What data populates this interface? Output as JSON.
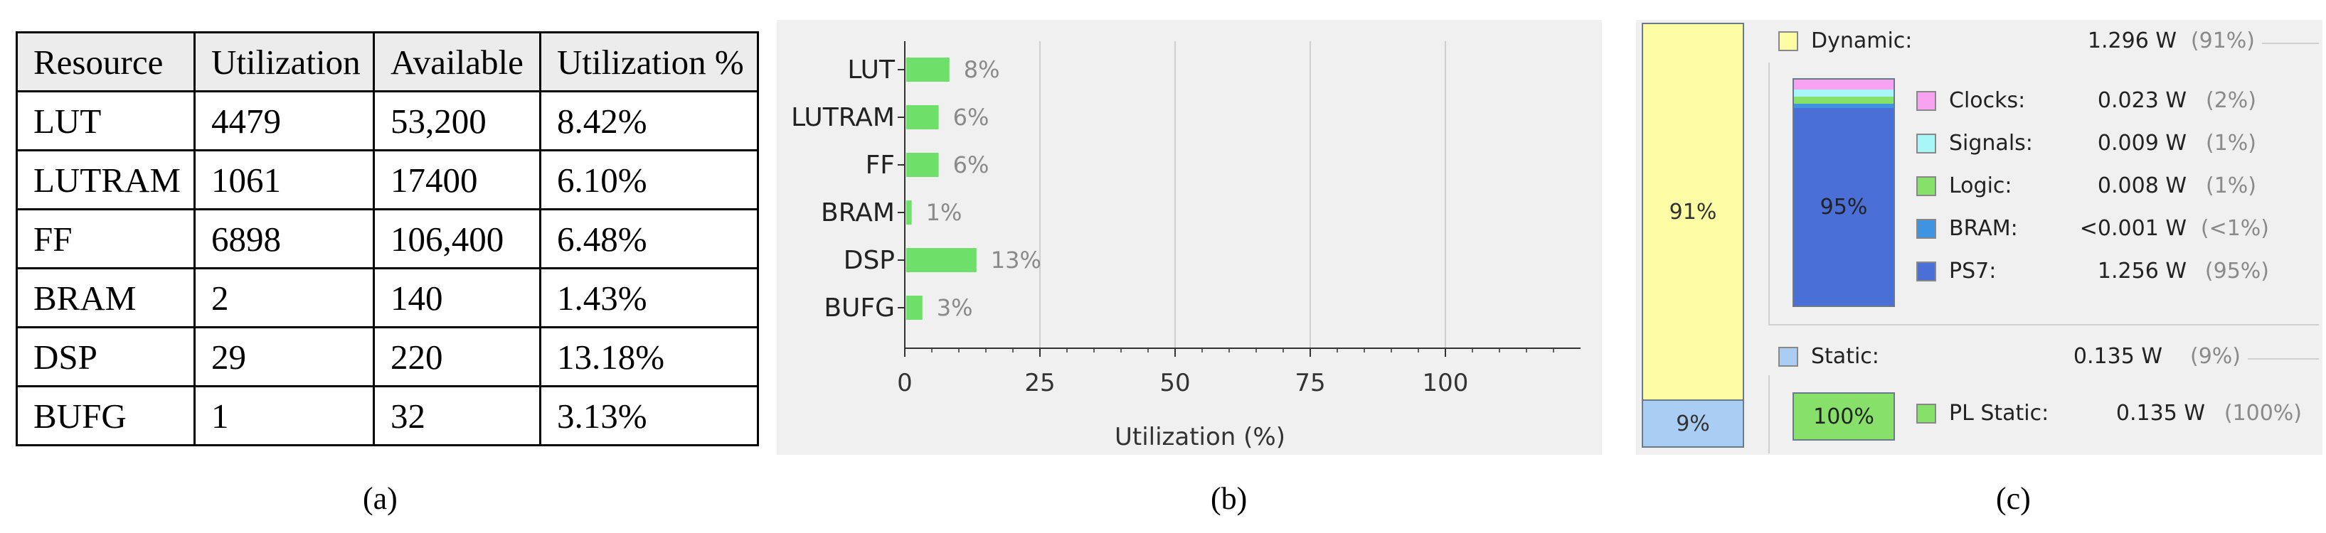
{
  "table": {
    "headers": [
      "Resource",
      "Utilization",
      "Available",
      "Utilization %"
    ],
    "rows": [
      [
        "LUT",
        "4479",
        "53,200",
        "8.42%"
      ],
      [
        "LUTRAM",
        "1061",
        "17400",
        "6.10%"
      ],
      [
        "FF",
        "6898",
        "106,400",
        "6.48%"
      ],
      [
        "BRAM",
        "2",
        "140",
        "1.43%"
      ],
      [
        "DSP",
        "29",
        "220",
        "13.18%"
      ],
      [
        "BUFG",
        "1",
        "32",
        "3.13%"
      ]
    ]
  },
  "captions": {
    "a": "(a)",
    "b": "(b)",
    "c": "(c)"
  },
  "chart_data": [
    {
      "type": "bar",
      "orientation": "horizontal",
      "categories": [
        "LUT",
        "LUTRAM",
        "FF",
        "BRAM",
        "DSP",
        "BUFG"
      ],
      "values": [
        8,
        6,
        6,
        1,
        13,
        3
      ],
      "data_labels": [
        "8%",
        "6%",
        "6%",
        "1%",
        "13%",
        "3%"
      ],
      "xlabel": "Utilization (%)",
      "xticks": [
        0,
        25,
        50,
        75,
        100
      ],
      "xlim": [
        0,
        125
      ],
      "grid": "vertical",
      "bar_color": "#6ee06a"
    },
    {
      "type": "bar",
      "stacked": true,
      "title": "",
      "total_bar": {
        "segments": [
          {
            "name": "Dynamic",
            "percent": 91,
            "label": "91%",
            "color": "#fdfda6"
          },
          {
            "name": "Static",
            "percent": 9,
            "label": "9%",
            "color": "#a9cdf3"
          }
        ]
      },
      "dynamic": {
        "label": "Dynamic:",
        "value": "1.296 W",
        "pct": "(91%)",
        "color": "#fdfda6",
        "bar_label": "95%",
        "items": [
          {
            "label": "Clocks:",
            "value": "0.023 W",
            "pct": "(2%)",
            "percent": 2,
            "color": "#f7a3f2"
          },
          {
            "label": "Signals:",
            "value": "0.009 W",
            "pct": "(1%)",
            "percent": 1,
            "color": "#a8f5f8"
          },
          {
            "label": "Logic:",
            "value": "0.008 W",
            "pct": "(1%)",
            "percent": 1,
            "color": "#86e06a"
          },
          {
            "label": "BRAM:",
            "value": "<0.001 W",
            "pct": "(<1%)",
            "percent": 1,
            "color": "#3f93e0"
          },
          {
            "label": "PS7:",
            "value": "1.256 W",
            "pct": "(95%)",
            "percent": 95,
            "color": "#4a6fd6"
          }
        ]
      },
      "static": {
        "label": "Static:",
        "value": "0.135 W",
        "pct": "(9%)",
        "color": "#a9cdf3",
        "items": [
          {
            "label": "PL Static:",
            "value": "0.135 W",
            "pct": "(100%)",
            "percent": 100,
            "bar_label": "100%",
            "color": "#86e06a"
          }
        ]
      }
    }
  ]
}
